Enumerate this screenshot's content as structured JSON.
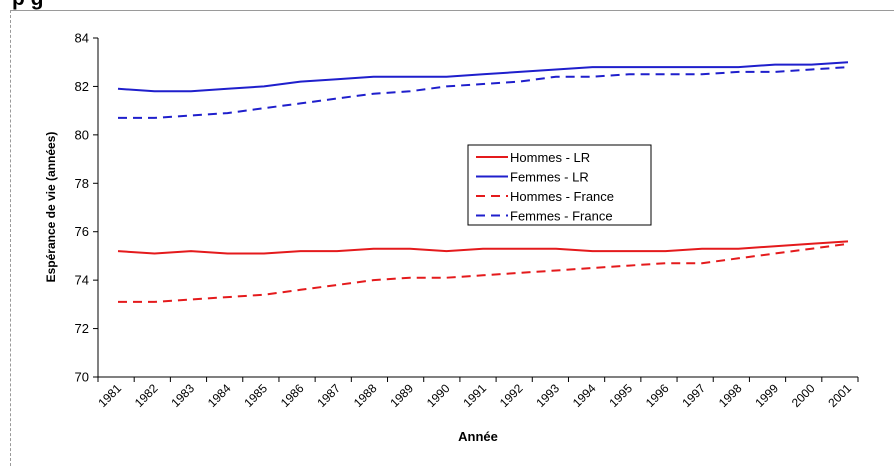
{
  "page": {
    "title": "p                                                                                     g"
  },
  "chart_data": {
    "type": "line",
    "title": "",
    "xlabel": "Année",
    "ylabel": "Espérance de vie (années)",
    "ylim": [
      70,
      84
    ],
    "yticks": [
      70,
      72,
      74,
      76,
      78,
      80,
      82,
      84
    ],
    "categories": [
      "1981",
      "1982",
      "1983",
      "1984",
      "1985",
      "1986",
      "1987",
      "1988",
      "1989",
      "1990",
      "1991",
      "1992",
      "1993",
      "1994",
      "1995",
      "1996",
      "1997",
      "1998",
      "1999",
      "2000",
      "2001"
    ],
    "x_numeric": [
      1981,
      1982,
      1983,
      1984,
      1985,
      1986,
      1987,
      1988,
      1989,
      1990,
      1991,
      1992,
      1993,
      1994,
      1995,
      1996,
      1997,
      1998,
      1999,
      2000,
      2001
    ],
    "grid": false,
    "legend_position": "center-right",
    "series": [
      {
        "name": "Hommes - LR",
        "color": "#e41a1c",
        "dash": "solid",
        "values": [
          75.2,
          75.1,
          75.2,
          75.1,
          75.1,
          75.2,
          75.2,
          75.3,
          75.3,
          75.2,
          75.3,
          75.3,
          75.3,
          75.2,
          75.2,
          75.2,
          75.3,
          75.3,
          75.4,
          75.5,
          75.6
        ]
      },
      {
        "name": "Femmes - LR",
        "color": "#1f1fcc",
        "dash": "solid",
        "values": [
          81.9,
          81.8,
          81.8,
          81.9,
          82.0,
          82.2,
          82.3,
          82.4,
          82.4,
          82.4,
          82.5,
          82.6,
          82.7,
          82.8,
          82.8,
          82.8,
          82.8,
          82.8,
          82.9,
          82.9,
          83.0
        ]
      },
      {
        "name": "Hommes - France",
        "color": "#e41a1c",
        "dash": "dashed",
        "values": [
          73.1,
          73.1,
          73.2,
          73.3,
          73.4,
          73.6,
          73.8,
          74.0,
          74.1,
          74.1,
          74.2,
          74.3,
          74.4,
          74.5,
          74.6,
          74.7,
          74.7,
          74.9,
          75.1,
          75.3,
          75.5
        ]
      },
      {
        "name": "Femmes - France",
        "color": "#1f1fcc",
        "dash": "dashed",
        "values": [
          80.7,
          80.7,
          80.8,
          80.9,
          81.1,
          81.3,
          81.5,
          81.7,
          81.8,
          82.0,
          82.1,
          82.2,
          82.4,
          82.4,
          82.5,
          82.5,
          82.5,
          82.6,
          82.6,
          82.7,
          82.8
        ]
      }
    ]
  }
}
